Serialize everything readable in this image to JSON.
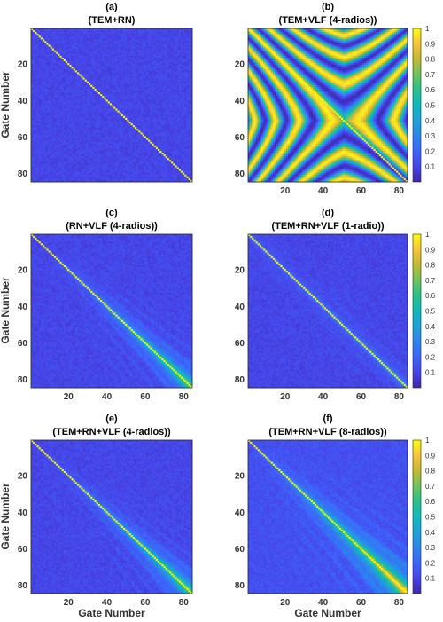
{
  "colors": {
    "low": "#3e26a8",
    "high": "#f9fb0e"
  },
  "colorbar": {
    "ticks": [
      "0.1",
      "0.2",
      "0.3",
      "0.4",
      "0.5",
      "0.6",
      "0.7",
      "0.8",
      "0.9",
      "1"
    ]
  },
  "chart_data": [
    {
      "type": "heatmap",
      "letter": "(a)",
      "title": "(TEM+RN)",
      "pattern": "identity",
      "size": 84,
      "xticks": [],
      "yticks": [
        "20",
        "40",
        "60",
        "80"
      ],
      "xlabel": "",
      "ylabel": "Gate Number",
      "zlim": [
        0,
        1
      ]
    },
    {
      "type": "heatmap",
      "letter": "(b)",
      "title": "(TEM+VLF (4-radios))",
      "pattern": "oscillatory",
      "size": 84,
      "xticks": [
        "20",
        "40",
        "60",
        "80"
      ],
      "yticks": [
        "20",
        "40",
        "60",
        "80"
      ],
      "xlabel": "",
      "ylabel": "",
      "zlim": [
        0,
        1
      ],
      "colorbar": true
    },
    {
      "type": "heatmap",
      "letter": "(c)",
      "title": "(RN+VLF (4-radios))",
      "pattern": "diag-fan",
      "size": 84,
      "xticks": [
        "20",
        "40",
        "60",
        "80"
      ],
      "yticks": [
        "20",
        "40",
        "60",
        "80"
      ],
      "xlabel": "",
      "ylabel": "Gate Number",
      "zlim": [
        0,
        1
      ]
    },
    {
      "type": "heatmap",
      "letter": "(d)",
      "title": "(TEM+RN+VLF (1-radio))",
      "pattern": "diag-weak",
      "size": 84,
      "xticks": [
        "20",
        "40",
        "60",
        "80"
      ],
      "yticks": [
        "20",
        "40",
        "60",
        "80"
      ],
      "xlabel": "",
      "ylabel": "",
      "zlim": [
        0,
        1
      ],
      "colorbar": true
    },
    {
      "type": "heatmap",
      "letter": "(e)",
      "title": "(TEM+RN+VLF (4-radios))",
      "pattern": "diag-fan",
      "size": 84,
      "xticks": [
        "20",
        "40",
        "60",
        "80"
      ],
      "yticks": [
        "20",
        "40",
        "60",
        "80"
      ],
      "xlabel": "Gate Number",
      "ylabel": "Gate Number",
      "zlim": [
        0,
        1
      ]
    },
    {
      "type": "heatmap",
      "letter": "(f)",
      "title": "(TEM+RN+VLF (8-radios))",
      "pattern": "diag-strong",
      "size": 84,
      "xticks": [
        "20",
        "40",
        "60",
        "80"
      ],
      "yticks": [
        "20",
        "40",
        "60",
        "80"
      ],
      "xlabel": "Gate Number",
      "ylabel": "",
      "zlim": [
        0,
        1
      ],
      "colorbar": true
    }
  ]
}
